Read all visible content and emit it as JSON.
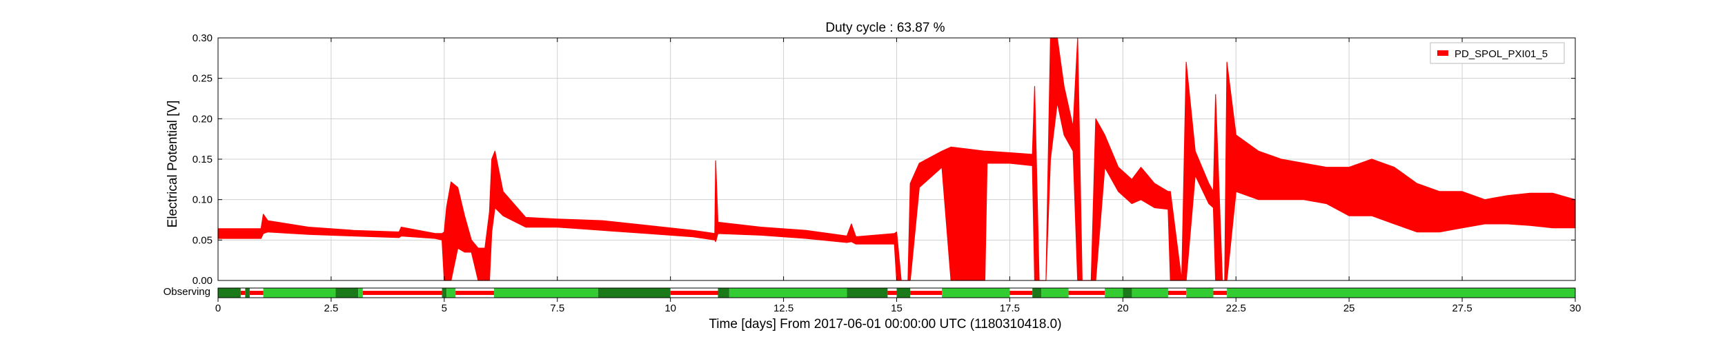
{
  "chart_data": {
    "type": "line",
    "title": "Duty cycle : 63.87 %",
    "xlabel": "Time [days] From 2017-06-01 00:00:00 UTC (1180310418.0)",
    "ylabel": "Electrical Potential [V]",
    "xlim": [
      0,
      30
    ],
    "ylim": [
      0,
      0.3
    ],
    "xticks": [
      0,
      2.5,
      5,
      7.5,
      10,
      12.5,
      15,
      17.5,
      20,
      22.5,
      25,
      27.5,
      30
    ],
    "xtick_labels": [
      "0",
      "2.5",
      "5",
      "7.5",
      "10",
      "12.5",
      "15",
      "17.5",
      "20",
      "22.5",
      "25",
      "27.5",
      "30"
    ],
    "yticks": [
      0,
      0.05,
      0.1,
      0.15,
      0.2,
      0.25,
      0.3
    ],
    "ytick_labels": [
      "0.00",
      "0.05",
      "0.10",
      "0.15",
      "0.20",
      "0.25",
      "0.30"
    ],
    "grid": true,
    "legend_position": "top-right",
    "series": [
      {
        "name": "PD_SPOL_PXI01_5",
        "color": "#ff0000",
        "band": [
          [
            0.0,
            0.052,
            0.064
          ],
          [
            0.95,
            0.052,
            0.064
          ],
          [
            1.0,
            0.058,
            0.082
          ],
          [
            1.1,
            0.06,
            0.074
          ],
          [
            2.0,
            0.057,
            0.066
          ],
          [
            3.0,
            0.055,
            0.062
          ],
          [
            4.0,
            0.053,
            0.06
          ],
          [
            4.05,
            0.055,
            0.066
          ],
          [
            4.8,
            0.052,
            0.058
          ],
          [
            4.95,
            0.05,
            0.058
          ],
          [
            5.0,
            0.0,
            0.06
          ],
          [
            5.05,
            0.0,
            0.09
          ],
          [
            5.15,
            0.0,
            0.122
          ],
          [
            5.3,
            0.04,
            0.115
          ],
          [
            5.45,
            0.035,
            0.08
          ],
          [
            5.6,
            0.035,
            0.05
          ],
          [
            5.75,
            0.0,
            0.04
          ],
          [
            5.9,
            0.0,
            0.04
          ],
          [
            6.0,
            0.0,
            0.085
          ],
          [
            6.05,
            0.06,
            0.15
          ],
          [
            6.12,
            0.09,
            0.16
          ],
          [
            6.3,
            0.08,
            0.11
          ],
          [
            6.8,
            0.066,
            0.078
          ],
          [
            7.5,
            0.066,
            0.076
          ],
          [
            8.0,
            0.064,
            0.075
          ],
          [
            8.5,
            0.062,
            0.074
          ],
          [
            9.5,
            0.058,
            0.068
          ],
          [
            10.5,
            0.054,
            0.062
          ],
          [
            10.98,
            0.05,
            0.058
          ],
          [
            11.0,
            0.048,
            0.148
          ],
          [
            11.05,
            0.058,
            0.072
          ],
          [
            12.0,
            0.056,
            0.066
          ],
          [
            13.0,
            0.052,
            0.062
          ],
          [
            13.9,
            0.047,
            0.055
          ],
          [
            14.0,
            0.048,
            0.07
          ],
          [
            14.1,
            0.045,
            0.054
          ],
          [
            14.95,
            0.045,
            0.058
          ],
          [
            15.0,
            0.0,
            0.06
          ],
          [
            15.1,
            0.0,
            0.0
          ],
          [
            15.25,
            0.0,
            0.0
          ],
          [
            15.3,
            0.0,
            0.12
          ],
          [
            15.5,
            0.115,
            0.145
          ],
          [
            16.0,
            0.14,
            0.16
          ],
          [
            16.2,
            0.0,
            0.165
          ],
          [
            16.95,
            0.0,
            0.16
          ],
          [
            17.0,
            0.145,
            0.16
          ],
          [
            17.5,
            0.145,
            0.158
          ],
          [
            18.0,
            0.142,
            0.156
          ],
          [
            18.05,
            0.0,
            0.24
          ],
          [
            18.15,
            0.0,
            0.0
          ],
          [
            18.3,
            0.0,
            0.0
          ],
          [
            18.4,
            0.15,
            0.3
          ],
          [
            18.55,
            0.22,
            0.3
          ],
          [
            18.7,
            0.18,
            0.24
          ],
          [
            18.9,
            0.16,
            0.19
          ],
          [
            19.0,
            0.0,
            0.3
          ],
          [
            19.1,
            0.0,
            0.0
          ],
          [
            19.3,
            0.0,
            0.0
          ],
          [
            19.4,
            0.0,
            0.2
          ],
          [
            19.6,
            0.14,
            0.18
          ],
          [
            19.9,
            0.11,
            0.14
          ],
          [
            20.2,
            0.095,
            0.125
          ],
          [
            20.4,
            0.1,
            0.14
          ],
          [
            20.7,
            0.09,
            0.12
          ],
          [
            21.0,
            0.088,
            0.11
          ],
          [
            21.05,
            0.0,
            0.11
          ],
          [
            21.3,
            0.0,
            0.0
          ],
          [
            21.4,
            0.0,
            0.27
          ],
          [
            21.6,
            0.13,
            0.16
          ],
          [
            21.9,
            0.095,
            0.12
          ],
          [
            22.0,
            0.09,
            0.11
          ],
          [
            22.05,
            0.0,
            0.23
          ],
          [
            22.2,
            0.0,
            0.0
          ],
          [
            22.25,
            0.0,
            0.0
          ],
          [
            22.3,
            0.0,
            0.27
          ],
          [
            22.5,
            0.11,
            0.18
          ],
          [
            23.0,
            0.1,
            0.16
          ],
          [
            23.5,
            0.1,
            0.15
          ],
          [
            24.0,
            0.1,
            0.145
          ],
          [
            24.5,
            0.095,
            0.14
          ],
          [
            25.0,
            0.08,
            0.14
          ],
          [
            25.5,
            0.08,
            0.15
          ],
          [
            26.0,
            0.07,
            0.14
          ],
          [
            26.5,
            0.06,
            0.12
          ],
          [
            27.0,
            0.06,
            0.11
          ],
          [
            27.5,
            0.065,
            0.11
          ],
          [
            28.0,
            0.07,
            0.1
          ],
          [
            28.5,
            0.07,
            0.105
          ],
          [
            29.0,
            0.068,
            0.108
          ],
          [
            29.5,
            0.065,
            0.108
          ],
          [
            30.0,
            0.065,
            0.1
          ]
        ]
      }
    ],
    "state_bar": {
      "label": "Observing",
      "colors": {
        "observing": "#33cc33",
        "ready": "#1a7a1a",
        "not_observing": "#ff0000"
      },
      "segments": [
        [
          0.0,
          0.5,
          "ready"
        ],
        [
          0.5,
          0.6,
          "not_observing"
        ],
        [
          0.6,
          0.7,
          "ready"
        ],
        [
          0.7,
          1.0,
          "not_observing"
        ],
        [
          1.0,
          2.6,
          "observing"
        ],
        [
          2.6,
          3.1,
          "ready"
        ],
        [
          3.1,
          3.2,
          "observing"
        ],
        [
          3.2,
          4.95,
          "not_observing"
        ],
        [
          4.95,
          5.05,
          "ready"
        ],
        [
          5.05,
          5.25,
          "observing"
        ],
        [
          5.25,
          6.1,
          "not_observing"
        ],
        [
          6.1,
          8.4,
          "observing"
        ],
        [
          8.4,
          10.0,
          "ready"
        ],
        [
          10.0,
          11.05,
          "not_observing"
        ],
        [
          11.05,
          11.3,
          "ready"
        ],
        [
          11.3,
          13.9,
          "observing"
        ],
        [
          13.9,
          14.8,
          "ready"
        ],
        [
          14.8,
          15.0,
          "not_observing"
        ],
        [
          15.0,
          15.3,
          "ready"
        ],
        [
          15.3,
          16.0,
          "not_observing"
        ],
        [
          16.0,
          17.5,
          "observing"
        ],
        [
          17.5,
          18.0,
          "not_observing"
        ],
        [
          18.0,
          18.2,
          "ready"
        ],
        [
          18.2,
          18.8,
          "observing"
        ],
        [
          18.8,
          19.6,
          "not_observing"
        ],
        [
          19.6,
          20.0,
          "observing"
        ],
        [
          20.0,
          20.2,
          "ready"
        ],
        [
          20.2,
          21.0,
          "observing"
        ],
        [
          21.0,
          21.4,
          "not_observing"
        ],
        [
          21.4,
          22.0,
          "observing"
        ],
        [
          22.0,
          22.3,
          "not_observing"
        ],
        [
          22.3,
          30.0,
          "observing"
        ]
      ]
    }
  }
}
